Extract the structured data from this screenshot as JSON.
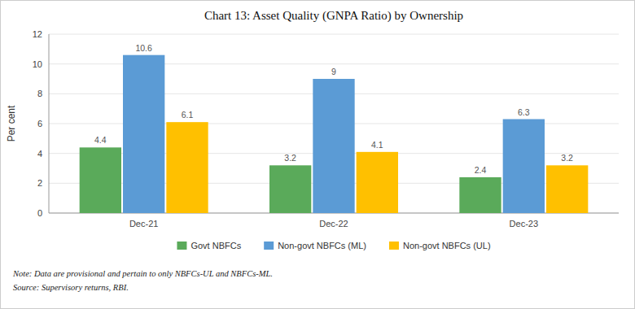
{
  "chart_data": {
    "type": "bar",
    "title": "Chart 13: Asset Quality (GNPA Ratio) by Ownership",
    "categories": [
      "Dec-21",
      "Dec-22",
      "Dec-23"
    ],
    "series": [
      {
        "name": "Govt NBFCs",
        "color": "#5aaa5a",
        "values": [
          4.4,
          3.2,
          2.4
        ]
      },
      {
        "name": "Non-govt NBFCs (ML)",
        "color": "#5b9bd5",
        "values": [
          10.6,
          9.0,
          6.3
        ]
      },
      {
        "name": "Non-govt NBFCs (UL)",
        "color": "#ffc000",
        "values": [
          6.1,
          4.1,
          3.2
        ]
      }
    ],
    "ylabel": "Per cent",
    "ylim": [
      0,
      12
    ],
    "yticks": [
      0,
      2,
      4,
      6,
      8,
      10,
      12
    ],
    "grid": true,
    "legend": "bottom",
    "data_labels": true,
    "annotations": [
      "Note: Data are provisional and pertain to only NBFCs-UL and NBFCs-ML.",
      "Source: Supervisory returns, RBI."
    ]
  }
}
